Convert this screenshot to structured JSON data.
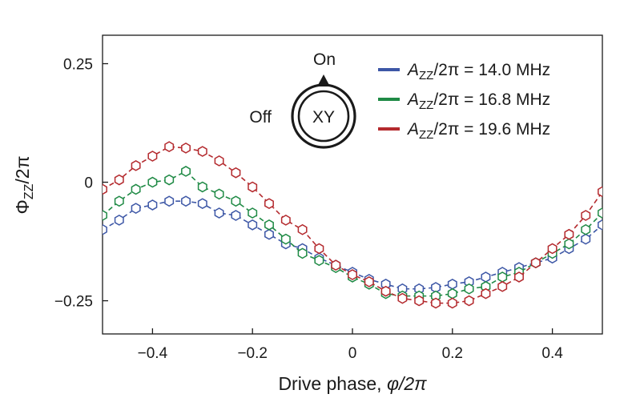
{
  "chart_data": {
    "type": "scatter",
    "title": "",
    "xlabel_text": "Drive phase, ",
    "xlabel_var": "φ/2π",
    "ylabel_main": "Φ",
    "ylabel_sub": "ZZ",
    "ylabel_tail": "/2π",
    "xlim": [
      -0.5,
      0.5
    ],
    "ylim": [
      -0.32,
      0.31
    ],
    "xticks": [
      -0.4,
      -0.2,
      0,
      0.2,
      0.4
    ],
    "xtick_labels": [
      "−0.4",
      "−0.2",
      "0",
      "0.2",
      "0.4"
    ],
    "yticks": [
      0.25,
      0,
      -0.25
    ],
    "ytick_labels": [
      "0.25",
      "0",
      "−0.25"
    ],
    "grid": false,
    "legend_position": "top-right",
    "marker": "hexagon-open",
    "line_style": "dashed",
    "x": [
      -0.5,
      -0.4667,
      -0.4333,
      -0.4,
      -0.3667,
      -0.3333,
      -0.3,
      -0.2667,
      -0.2333,
      -0.2,
      -0.1667,
      -0.1333,
      -0.1,
      -0.0667,
      -0.0333,
      0,
      0.0333,
      0.0667,
      0.1,
      0.1333,
      0.1667,
      0.2,
      0.2333,
      0.2667,
      0.3,
      0.3333,
      0.3667,
      0.4,
      0.4333,
      0.4667,
      0.5
    ],
    "series": [
      {
        "name_var": "A",
        "name_sub": "ZZ",
        "name_tail": "/2π = 14.0 MHz",
        "color": "#3d57a6",
        "values": [
          -0.1,
          -0.08,
          -0.055,
          -0.048,
          -0.04,
          -0.04,
          -0.045,
          -0.065,
          -0.07,
          -0.09,
          -0.11,
          -0.13,
          -0.14,
          -0.16,
          -0.175,
          -0.19,
          -0.205,
          -0.215,
          -0.225,
          -0.225,
          -0.222,
          -0.215,
          -0.21,
          -0.2,
          -0.19,
          -0.18,
          -0.17,
          -0.16,
          -0.14,
          -0.12,
          -0.09
        ]
      },
      {
        "name_var": "A",
        "name_sub": "ZZ",
        "name_tail": "/2π = 16.8 MHz",
        "color": "#1f8a45",
        "values": [
          -0.07,
          -0.04,
          -0.015,
          0.0,
          0.005,
          0.023,
          -0.01,
          -0.025,
          -0.04,
          -0.065,
          -0.09,
          -0.12,
          -0.15,
          -0.165,
          -0.18,
          -0.2,
          -0.215,
          -0.235,
          -0.24,
          -0.24,
          -0.24,
          -0.235,
          -0.225,
          -0.22,
          -0.2,
          -0.19,
          -0.17,
          -0.15,
          -0.13,
          -0.1,
          -0.065
        ]
      },
      {
        "name_var": "A",
        "name_sub": "ZZ",
        "name_tail": "/2π = 19.6 MHz",
        "color": "#b42a2e",
        "values": [
          -0.015,
          0.005,
          0.035,
          0.055,
          0.075,
          0.072,
          0.065,
          0.045,
          0.02,
          -0.01,
          -0.045,
          -0.08,
          -0.1,
          -0.14,
          -0.175,
          -0.195,
          -0.21,
          -0.23,
          -0.245,
          -0.25,
          -0.255,
          -0.255,
          -0.25,
          -0.235,
          -0.22,
          -0.2,
          -0.17,
          -0.14,
          -0.11,
          -0.07,
          -0.02
        ]
      }
    ]
  },
  "inset": {
    "label_on": "On",
    "label_off": "Off",
    "label_center": "XY"
  }
}
